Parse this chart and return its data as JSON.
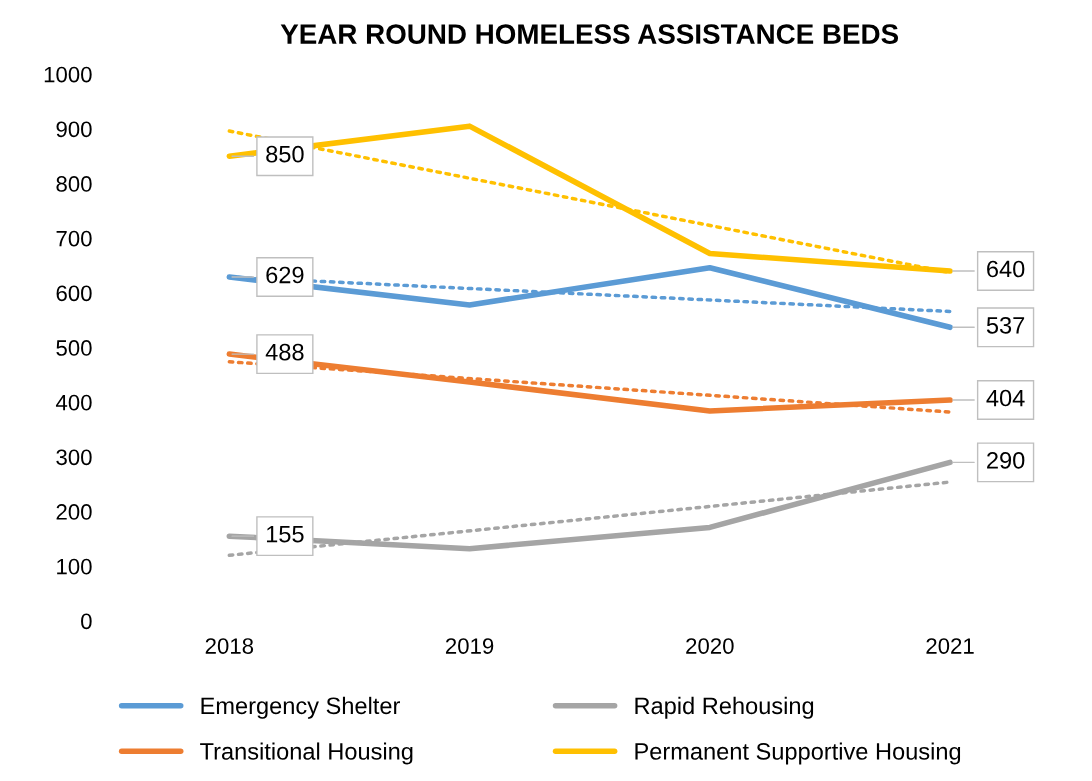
{
  "chart_data": {
    "type": "line",
    "title": "YEAR ROUND HOMELESS ASSISTANCE BEDS",
    "categories": [
      "2018",
      "2019",
      "2020",
      "2021"
    ],
    "series": [
      {
        "name": "Emergency Shelter",
        "color": "#5b9bd5",
        "values": [
          629,
          578,
          646,
          537
        ],
        "value_labels": [
          "629",
          null,
          null,
          "537"
        ]
      },
      {
        "name": "Transitional Housing",
        "color": "#ed7d31",
        "values": [
          488,
          437,
          384,
          404
        ],
        "value_labels": [
          "488",
          null,
          null,
          "404"
        ]
      },
      {
        "name": "Rapid Rehousing",
        "color": "#a5a5a5",
        "values": [
          155,
          132,
          171,
          290
        ],
        "value_labels": [
          "155",
          null,
          null,
          "290"
        ]
      },
      {
        "name": "Permanent Supportive Housing",
        "color": "#ffc000",
        "values": [
          850,
          905,
          672,
          640
        ],
        "value_labels": [
          "850",
          null,
          null,
          "640"
        ]
      },
      {
        "color": "#5b9bd5",
        "line_style": "dotted",
        "values": [
          629,
          null,
          null,
          566
        ]
      },
      {
        "color": "#ed7d31",
        "line_style": "dotted",
        "values": [
          474,
          null,
          null,
          382
        ]
      },
      {
        "color": "#a5a5a5",
        "line_style": "dotted",
        "values": [
          120,
          null,
          null,
          254
        ]
      },
      {
        "color": "#ffc000",
        "line_style": "dotted",
        "values": [
          896,
          null,
          null,
          637
        ]
      }
    ],
    "ylim": [
      0,
      1000
    ],
    "yticks": [
      0,
      100,
      200,
      300,
      400,
      500,
      600,
      700,
      800,
      900,
      1000
    ],
    "grid": false,
    "legend": "bottom",
    "marker": "none",
    "line_style": "solid"
  }
}
